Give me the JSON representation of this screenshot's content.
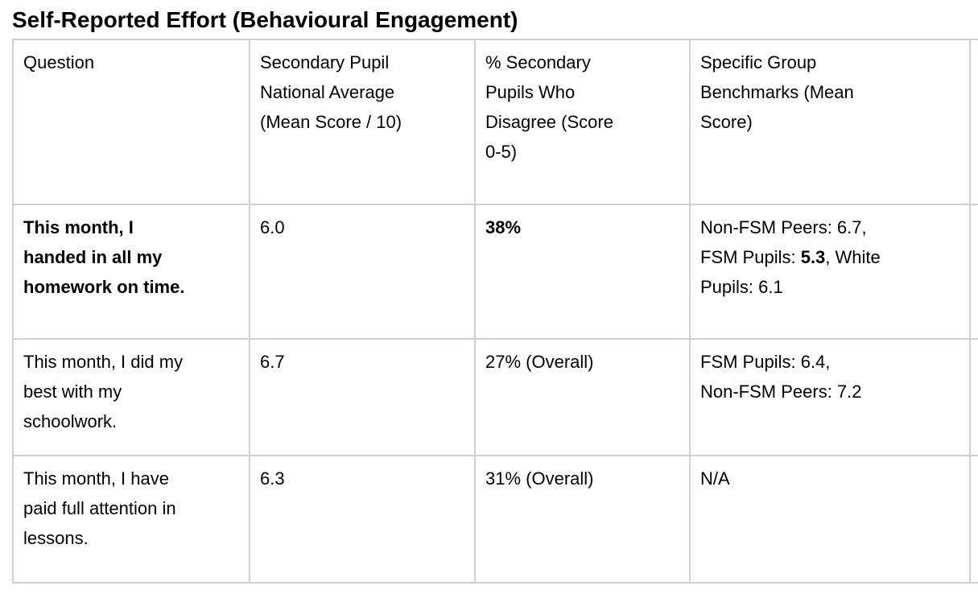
{
  "title": "Self-Reported Effort (Behavioural Engagement)",
  "colors": {
    "border": "#ccd1d9",
    "text": "#000000",
    "background": "#ffffff"
  },
  "table": {
    "header": {
      "question": "Question",
      "national_average": "Secondary Pupil\nNational Average\n(Mean Score / 10)",
      "pct_disagree": "% Secondary\nPupils Who\nDisagree (Score\n0-5)",
      "benchmarks": "Specific Group\nBenchmarks (Mean\nScore)"
    },
    "rows": [
      {
        "question": "This month, I\nhanded in all my\nhomework on time.",
        "national_average": "6.0",
        "pct_disagree": "38%",
        "benchmarks_pre": "Non-FSM Peers: 6.7,\nFSM Pupils: ",
        "benchmarks_bold": "5.3",
        "benchmarks_post": ", White\nPupils: 6.1"
      },
      {
        "question": "This month, I did my\nbest with my\nschoolwork.",
        "national_average": "6.7",
        "pct_disagree": "27% (Overall)",
        "benchmarks_pre": "FSM Pupils: 6.4,\nNon-FSM Peers: 7.2",
        "benchmarks_bold": "",
        "benchmarks_post": ""
      },
      {
        "question": "This month, I have\npaid full attention in\nlessons.",
        "national_average": "6.3",
        "pct_disagree": "31% (Overall)",
        "benchmarks_pre": "N/A",
        "benchmarks_bold": "",
        "benchmarks_post": ""
      }
    ]
  }
}
